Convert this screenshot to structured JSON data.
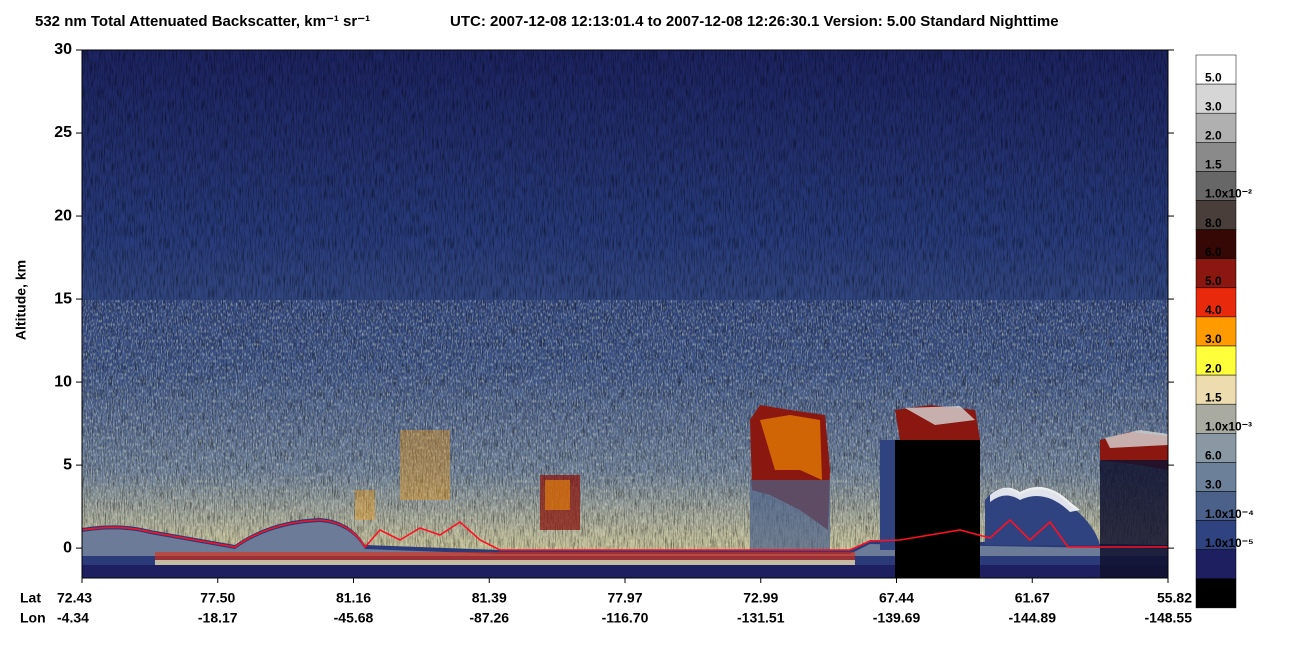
{
  "chart_data": {
    "type": "heatmap",
    "title": "532 nm Total Attenuated Backscatter, km⁻¹ sr⁻¹",
    "subtitle": "UTC:  2007-12-08 12:13:01.4  to  2007-12-08 12:26:30.1    Version: 5.00  Standard  Nighttime",
    "y_label": "Altitude, km",
    "ylim": [
      -1.8,
      30
    ],
    "yticks": [
      0,
      5,
      10,
      15,
      20,
      25,
      30
    ],
    "row_labels": [
      "Lat",
      "Lon"
    ],
    "categories": [
      "72.43",
      "77.50",
      "81.16",
      "81.39",
      "77.97",
      "72.99",
      "67.44",
      "61.67",
      "55.82"
    ],
    "lon": [
      "-4.34",
      "-18.17",
      "-45.68",
      "-87.26",
      "-116.70",
      "-131.51",
      "-139.69",
      "-144.89",
      "-148.55"
    ],
    "colorbar_colors": [
      "#ffffff",
      "#d6d6d6",
      "#b0b0b0",
      "#8a8a8a",
      "#676767",
      "#4a3e3a",
      "#360805",
      "#8a1810",
      "#e8290b",
      "#ff9a00",
      "#ffff3a",
      "#ecdcae",
      "#a9aba0",
      "#8a98a4",
      "#6c8099",
      "#4b6189",
      "#2f4381",
      "#1d1f60",
      "#000000"
    ],
    "colorbar_labels": [
      "5.0",
      "3.0",
      "2.0",
      "1.5",
      "1.0x10⁻²",
      "8.0",
      "6.0",
      "5.0",
      "4.0",
      "3.0",
      "2.0",
      "1.5",
      "1.0x10⁻³",
      "6.0",
      "3.0",
      "1.0x10⁻⁴",
      "1.0x10⁻⁵"
    ]
  }
}
